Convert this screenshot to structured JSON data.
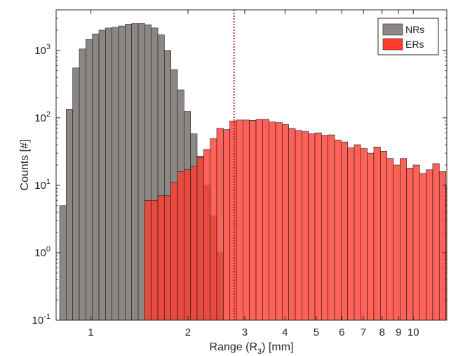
{
  "chart_data": {
    "type": "bar",
    "title": "",
    "xlabel_parts": {
      "pre": "Range (R",
      "sub": "3",
      "post": ") [mm]"
    },
    "ylabel": "Counts [#]",
    "x_scale": "log",
    "y_scale": "log",
    "xlim": [
      0.78,
      12.7
    ],
    "ylim": [
      0.1,
      4000
    ],
    "x_ticks": [
      1,
      2,
      3,
      4,
      5,
      6,
      7,
      8,
      9,
      10
    ],
    "x_tick_labels": [
      "1",
      "2",
      "3",
      "4",
      "5",
      "6",
      "7",
      "8",
      "9",
      "10"
    ],
    "y_ticks": [
      {
        "value": 0.1,
        "base": "10",
        "exp": "-1"
      },
      {
        "value": 1,
        "base": "10",
        "exp": "0"
      },
      {
        "value": 10,
        "base": "10",
        "exp": "1"
      },
      {
        "value": 100,
        "base": "10",
        "exp": "2"
      },
      {
        "value": 1000,
        "base": "10",
        "exp": "3"
      }
    ],
    "grid": false,
    "vline_x": 2.78,
    "legend_position": "top-right",
    "colors": {
      "nrs": "#8c8784",
      "ers": "#ff3b30",
      "vline": "#c00000"
    },
    "bins": {
      "x_min": 0.8,
      "log_width": 0.0203,
      "nrs_values": [
        5,
        135,
        550,
        1050,
        1450,
        1750,
        2000,
        2150,
        2200,
        2300,
        2450,
        2500,
        2500,
        2400,
        2150,
        1700,
        1000,
        520,
        260,
        125,
        58,
        27,
        10,
        3.5,
        1
      ],
      "ers_start_index": 13,
      "ers_values": [
        6,
        6,
        7,
        7,
        11,
        16,
        17,
        19,
        26,
        34,
        49,
        70,
        67,
        90,
        93,
        93,
        92,
        95,
        95,
        87,
        85,
        80,
        70,
        65,
        63,
        58,
        60,
        55,
        56,
        47,
        44,
        36,
        40,
        35,
        30,
        37,
        32,
        25,
        20,
        25,
        18,
        20,
        15,
        17,
        21,
        16,
        10,
        14,
        12,
        13,
        9,
        9,
        11,
        8,
        7,
        8,
        6,
        6.5,
        5.5,
        4,
        5.5,
        7,
        4,
        3,
        4,
        3.5,
        3,
        2.5,
        2.5,
        6,
        3,
        2.5,
        4,
        3,
        2.5,
        5,
        3,
        2,
        4,
        2.5,
        2,
        3,
        2,
        1.5,
        2.5,
        1.5,
        1,
        5,
        2,
        1.5,
        1,
        2,
        2.5,
        3.5,
        1
      ]
    }
  },
  "legend": {
    "items": [
      {
        "label": "NRs",
        "color": "#8c8784"
      },
      {
        "label": "ERs",
        "color": "#ff3b30"
      }
    ]
  }
}
